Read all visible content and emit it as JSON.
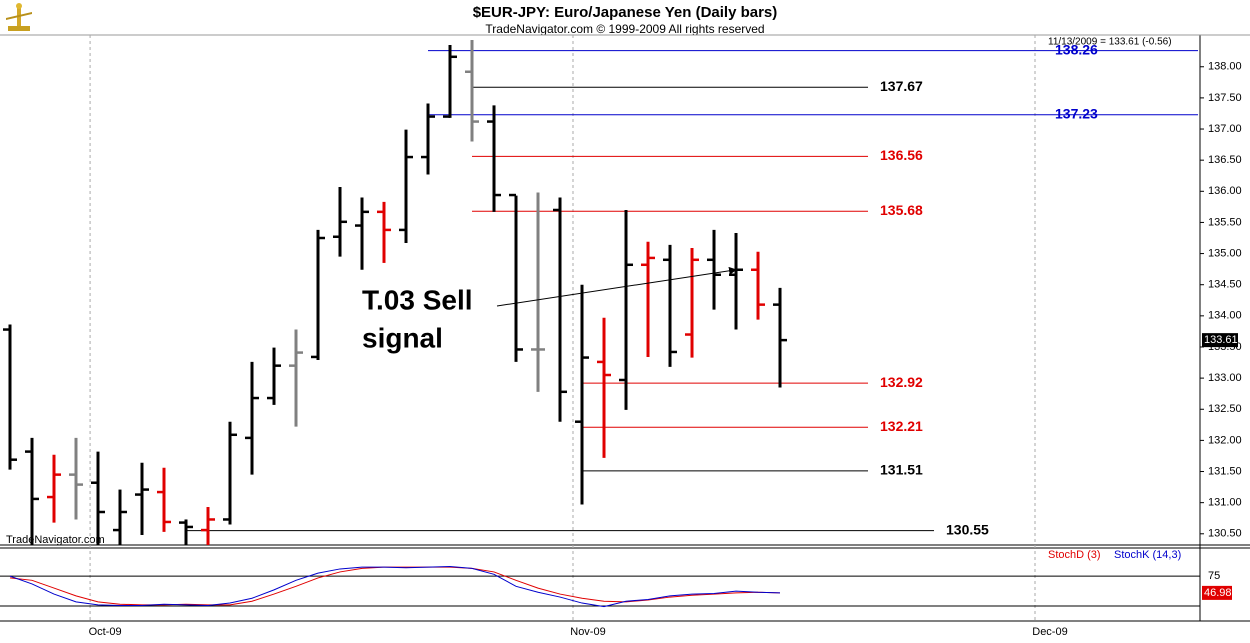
{
  "chart_data": [
    {
      "type": "ohlc",
      "title": "$EUR-JPY:  Euro/Japanese Yen  (Daily bars)",
      "subtitle": "TradeNavigator.com © 1999-2009 All rights reserved",
      "info": "11/13/2009 = 133.61 (-0.56)",
      "watermark": "TradeNavigator.com",
      "open": [
        133.78,
        131.82,
        131.09,
        131.45,
        131.32,
        130.56,
        131.13,
        131.17,
        130.68,
        130.56,
        130.73,
        132.04,
        132.68,
        133.2,
        133.34,
        135.27,
        135.45,
        135.67,
        135.38,
        136.55,
        137.2,
        137.92,
        137.12,
        135.94,
        133.46,
        135.7,
        132.3,
        133.26,
        132.97,
        134.82,
        134.9,
        133.7,
        134.9,
        134.66,
        134.74,
        134.18
      ],
      "high": [
        133.86,
        132.04,
        131.77,
        132.04,
        131.82,
        131.21,
        131.64,
        131.56,
        130.73,
        130.93,
        132.3,
        133.26,
        133.49,
        133.78,
        135.38,
        136.07,
        135.9,
        135.83,
        136.99,
        137.41,
        138.35,
        138.43,
        137.38,
        135.93,
        135.98,
        135.9,
        134.5,
        133.97,
        135.7,
        135.19,
        135.14,
        135.09,
        135.38,
        135.33,
        135.03,
        134.45
      ],
      "low": [
        131.53,
        130.32,
        130.68,
        130.73,
        130.32,
        130.32,
        130.48,
        130.53,
        130.32,
        130.32,
        130.65,
        131.45,
        132.57,
        132.22,
        133.29,
        134.95,
        134.74,
        134.85,
        135.17,
        136.27,
        137.18,
        136.8,
        135.67,
        133.26,
        132.78,
        132.3,
        130.97,
        131.72,
        132.49,
        133.34,
        133.18,
        133.33,
        134.1,
        133.78,
        133.94,
        132.85
      ],
      "close": [
        131.69,
        131.06,
        131.45,
        131.29,
        130.85,
        130.85,
        131.21,
        130.69,
        130.61,
        130.73,
        132.09,
        132.68,
        133.2,
        133.41,
        135.25,
        135.51,
        135.67,
        135.38,
        136.55,
        137.2,
        138.16,
        137.12,
        135.94,
        133.46,
        133.46,
        132.78,
        133.33,
        133.05,
        134.82,
        134.93,
        133.42,
        134.9,
        134.66,
        134.74,
        134.18,
        133.61
      ],
      "bar_colors": [
        "#000000",
        "#000000",
        "#e00000",
        "#808080",
        "#000000",
        "#000000",
        "#000000",
        "#e00000",
        "#000000",
        "#e00000",
        "#000000",
        "#000000",
        "#000000",
        "#808080",
        "#000000",
        "#000000",
        "#000000",
        "#e00000",
        "#000000",
        "#000000",
        "#000000",
        "#808080",
        "#000000",
        "#000000",
        "#808080",
        "#000000",
        "#000000",
        "#e00000",
        "#000000",
        "#e00000",
        "#000000",
        "#e00000",
        "#000000",
        "#000000",
        "#e00000",
        "#000000"
      ],
      "xlim": [
        -0.4545,
        54.09
      ],
      "xticks": [
        {
          "value": 3.64,
          "label": "Oct-09"
        },
        {
          "value": 25.59,
          "label": "Nov-09"
        },
        {
          "value": 46.59,
          "label": "Dec-09"
        }
      ],
      "ylim": [
        130.32,
        138.51
      ],
      "yticks": [
        {
          "value": 130.5,
          "label": "130.50"
        },
        {
          "value": 131,
          "label": "131.00"
        },
        {
          "value": 131.5,
          "label": "131.50"
        },
        {
          "value": 132,
          "label": "132.00"
        },
        {
          "value": 132.5,
          "label": "132.50"
        },
        {
          "value": 133,
          "label": "133.00"
        },
        {
          "value": 133.5,
          "label": "133.50"
        },
        {
          "value": 134,
          "label": "134.00"
        },
        {
          "value": 134.5,
          "label": "134.50"
        },
        {
          "value": 135,
          "label": "135.00"
        },
        {
          "value": 135.5,
          "label": "135.50"
        },
        {
          "value": 136,
          "label": "136.00"
        },
        {
          "value": 136.5,
          "label": "136.50"
        },
        {
          "value": 137,
          "label": "137.00"
        },
        {
          "value": 137.5,
          "label": "137.50"
        },
        {
          "value": 138,
          "label": "138.00"
        }
      ],
      "levels": [
        {
          "value": 138.26,
          "color": "#0000cc",
          "from": 19,
          "to": 54
        },
        {
          "value": 137.67,
          "color": "#000000",
          "from": 21,
          "to": 39
        },
        {
          "value": 137.23,
          "color": "#0000cc",
          "from": 19,
          "to": 54
        },
        {
          "value": 136.56,
          "color": "#e00000",
          "from": 21,
          "to": 39
        },
        {
          "value": 135.68,
          "color": "#e00000",
          "from": 21,
          "to": 39
        },
        {
          "value": 132.92,
          "color": "#e00000",
          "from": 26,
          "to": 39
        },
        {
          "value": 132.21,
          "color": "#e00000",
          "from": 26,
          "to": 39
        },
        {
          "value": 131.51,
          "color": "#000000",
          "from": 26,
          "to": 39
        },
        {
          "value": 130.55,
          "color": "#000000",
          "from": 8,
          "to": 42
        }
      ],
      "annotation": {
        "lines": [
          "T.03 Sell",
          "signal"
        ],
        "bar": 33
      }
    },
    {
      "type": "line",
      "series": [
        {
          "name": "StochD (3)",
          "color": "#e00000",
          "values": [
            72,
            68,
            55,
            42,
            32,
            28,
            27,
            27,
            28,
            27,
            27,
            33,
            45,
            58,
            72,
            82,
            88,
            90,
            90,
            90,
            90,
            88,
            82,
            68,
            55,
            45,
            38,
            33,
            32,
            35,
            40,
            43,
            45,
            47,
            48,
            46.98
          ]
        },
        {
          "name": "StochK (14,3)",
          "color": "#0000cc",
          "values": [
            75,
            62,
            45,
            32,
            27,
            26,
            26,
            28,
            27,
            26,
            30,
            38,
            52,
            68,
            80,
            87,
            90,
            90,
            89,
            90,
            91,
            88,
            78,
            58,
            48,
            40,
            30,
            24,
            33,
            36,
            42,
            45,
            46,
            50,
            48,
            47
          ]
        }
      ],
      "ylim": [
        0,
        122
      ],
      "yticks": [
        75
      ],
      "hlines": [
        25,
        75
      ]
    }
  ]
}
